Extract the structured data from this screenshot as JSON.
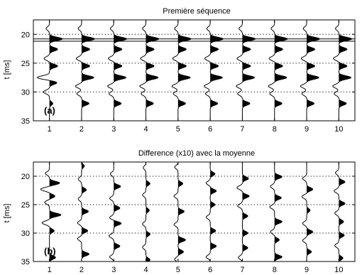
{
  "chart_data": [
    {
      "type": "line",
      "title": "Première séquence",
      "ylabel": "t [ms]",
      "panel_label": "(a)",
      "x_ticks": [
        "1",
        "2",
        "3",
        "4",
        "5",
        "6",
        "7",
        "8",
        "9",
        "10"
      ],
      "y_ticks": [
        "20",
        "25",
        "30",
        "35"
      ],
      "ylim": [
        17.5,
        35
      ],
      "y_reversed": true,
      "x_range": [
        0.5,
        10.5
      ],
      "grid_y": [
        20,
        25,
        30
      ],
      "solid_lines_y": [
        20.8,
        21.2
      ],
      "traces": [
        {
          "trace": 1,
          "events": [
            {
              "t": 19.0,
              "a": -0.25
            },
            {
              "t": 20.8,
              "a": 0.95
            },
            {
              "t": 22.6,
              "a": 0.6
            },
            {
              "t": 24.2,
              "a": -0.4
            },
            {
              "t": 25.5,
              "a": 0.6
            },
            {
              "t": 27.5,
              "a": -0.9
            },
            {
              "t": 28.4,
              "a": 0.55
            },
            {
              "t": 30.0,
              "a": -0.45
            },
            {
              "t": 32.0,
              "a": 0.25
            }
          ]
        },
        {
          "trace": 2,
          "events": [
            {
              "t": 19.0,
              "a": -0.25
            },
            {
              "t": 20.8,
              "a": 0.95
            },
            {
              "t": 22.6,
              "a": 0.6
            },
            {
              "t": 24.2,
              "a": -0.4
            },
            {
              "t": 25.5,
              "a": 0.6
            },
            {
              "t": 27.5,
              "a": 0.9
            },
            {
              "t": 29.0,
              "a": -0.45
            },
            {
              "t": 30.3,
              "a": -0.35
            },
            {
              "t": 32.0,
              "a": 0.55
            }
          ]
        },
        {
          "trace": 3,
          "events": [
            {
              "t": 19.0,
              "a": -0.25
            },
            {
              "t": 20.8,
              "a": 0.95
            },
            {
              "t": 22.6,
              "a": 0.6
            },
            {
              "t": 24.2,
              "a": -0.4
            },
            {
              "t": 25.5,
              "a": 0.6
            },
            {
              "t": 27.5,
              "a": 0.9
            },
            {
              "t": 29.0,
              "a": -0.45
            },
            {
              "t": 30.3,
              "a": -0.35
            },
            {
              "t": 32.0,
              "a": 0.55
            }
          ]
        },
        {
          "trace": 4,
          "events": [
            {
              "t": 19.0,
              "a": -0.25
            },
            {
              "t": 20.8,
              "a": 0.95
            },
            {
              "t": 22.6,
              "a": 0.6
            },
            {
              "t": 24.2,
              "a": -0.4
            },
            {
              "t": 25.5,
              "a": 0.6
            },
            {
              "t": 27.5,
              "a": 0.9
            },
            {
              "t": 29.0,
              "a": -0.45
            },
            {
              "t": 30.3,
              "a": -0.35
            },
            {
              "t": 32.0,
              "a": 0.55
            }
          ]
        },
        {
          "trace": 5,
          "events": [
            {
              "t": 19.0,
              "a": -0.25
            },
            {
              "t": 20.8,
              "a": 0.95
            },
            {
              "t": 22.6,
              "a": 0.6
            },
            {
              "t": 24.2,
              "a": -0.4
            },
            {
              "t": 25.5,
              "a": 0.6
            },
            {
              "t": 27.5,
              "a": 0.9
            },
            {
              "t": 29.0,
              "a": -0.45
            },
            {
              "t": 30.3,
              "a": -0.35
            },
            {
              "t": 32.0,
              "a": 0.55
            }
          ]
        },
        {
          "trace": 6,
          "events": [
            {
              "t": 19.0,
              "a": -0.25
            },
            {
              "t": 20.8,
              "a": 0.95
            },
            {
              "t": 22.6,
              "a": 0.6
            },
            {
              "t": 24.2,
              "a": -0.4
            },
            {
              "t": 25.5,
              "a": 0.6
            },
            {
              "t": 27.5,
              "a": 0.9
            },
            {
              "t": 29.0,
              "a": -0.45
            },
            {
              "t": 30.3,
              "a": -0.35
            },
            {
              "t": 32.0,
              "a": 0.55
            }
          ]
        },
        {
          "trace": 7,
          "events": [
            {
              "t": 19.0,
              "a": -0.25
            },
            {
              "t": 20.8,
              "a": 0.95
            },
            {
              "t": 22.6,
              "a": 0.6
            },
            {
              "t": 24.2,
              "a": -0.4
            },
            {
              "t": 25.5,
              "a": 0.6
            },
            {
              "t": 27.5,
              "a": 0.9
            },
            {
              "t": 29.0,
              "a": -0.45
            },
            {
              "t": 30.3,
              "a": -0.35
            },
            {
              "t": 32.0,
              "a": 0.55
            }
          ]
        },
        {
          "trace": 8,
          "events": [
            {
              "t": 19.0,
              "a": -0.25
            },
            {
              "t": 20.8,
              "a": 0.95
            },
            {
              "t": 22.6,
              "a": 0.6
            },
            {
              "t": 24.2,
              "a": -0.4
            },
            {
              "t": 25.5,
              "a": 0.6
            },
            {
              "t": 27.5,
              "a": 0.9
            },
            {
              "t": 29.0,
              "a": -0.45
            },
            {
              "t": 30.3,
              "a": -0.35
            },
            {
              "t": 32.0,
              "a": 0.55
            }
          ]
        },
        {
          "trace": 9,
          "events": [
            {
              "t": 19.0,
              "a": -0.25
            },
            {
              "t": 20.8,
              "a": 0.95
            },
            {
              "t": 22.6,
              "a": 0.6
            },
            {
              "t": 24.2,
              "a": -0.4
            },
            {
              "t": 25.5,
              "a": 0.6
            },
            {
              "t": 27.5,
              "a": 0.9
            },
            {
              "t": 29.0,
              "a": -0.45
            },
            {
              "t": 30.3,
              "a": -0.35
            },
            {
              "t": 32.0,
              "a": 0.55
            }
          ]
        },
        {
          "trace": 10,
          "events": [
            {
              "t": 19.0,
              "a": -0.25
            },
            {
              "t": 20.8,
              "a": 0.95
            },
            {
              "t": 22.6,
              "a": 0.6
            },
            {
              "t": 24.2,
              "a": -0.4
            },
            {
              "t": 25.5,
              "a": 0.6
            },
            {
              "t": 27.5,
              "a": 0.9
            },
            {
              "t": 29.0,
              "a": -0.45
            },
            {
              "t": 30.3,
              "a": -0.35
            },
            {
              "t": 32.0,
              "a": 0.55
            }
          ]
        }
      ]
    },
    {
      "type": "line",
      "title": "Difference (x10) avec la moyenne",
      "ylabel": "t [ms]",
      "panel_label": "(b)",
      "x_ticks": [
        "1",
        "2",
        "3",
        "4",
        "5",
        "6",
        "7",
        "8",
        "9",
        "10"
      ],
      "y_ticks": [
        "20",
        "25",
        "30",
        "35"
      ],
      "ylim": [
        17.5,
        35
      ],
      "y_reversed": true,
      "x_range": [
        0.5,
        10.5
      ],
      "grid_y": [
        20,
        25,
        30
      ],
      "solid_lines_y": [],
      "traces": [
        {
          "trace": 1,
          "events": [
            {
              "t": 19.5,
              "a": -0.3
            },
            {
              "t": 21.2,
              "a": 0.75
            },
            {
              "t": 22.3,
              "a": -0.65
            },
            {
              "t": 23.5,
              "a": 0.4
            },
            {
              "t": 24.6,
              "a": -0.35
            },
            {
              "t": 26.8,
              "a": 0.85
            },
            {
              "t": 28.2,
              "a": -0.55
            },
            {
              "t": 29.6,
              "a": 0.35
            },
            {
              "t": 34.3,
              "a": 0.45
            }
          ]
        },
        {
          "trace": 2,
          "events": [
            {
              "t": 18.2,
              "a": 0.2
            },
            {
              "t": 20.5,
              "a": -0.25
            },
            {
              "t": 22.4,
              "a": 0.35
            },
            {
              "t": 24.0,
              "a": -0.25
            },
            {
              "t": 26.2,
              "a": 0.5
            },
            {
              "t": 28.2,
              "a": -0.3
            },
            {
              "t": 29.6,
              "a": 0.45
            },
            {
              "t": 31.0,
              "a": -0.3
            },
            {
              "t": 33.7,
              "a": 0.55
            }
          ]
        },
        {
          "trace": 3,
          "events": [
            {
              "t": 19.6,
              "a": -0.25
            },
            {
              "t": 21.8,
              "a": 0.5
            },
            {
              "t": 23.9,
              "a": -0.3
            },
            {
              "t": 25.6,
              "a": 0.45
            },
            {
              "t": 27.3,
              "a": -0.3
            },
            {
              "t": 28.3,
              "a": 0.55
            },
            {
              "t": 30.5,
              "a": -0.35
            },
            {
              "t": 32.3,
              "a": 0.45
            },
            {
              "t": 34.2,
              "a": -0.3
            }
          ]
        },
        {
          "trace": 4,
          "events": [
            {
              "t": 18.5,
              "a": -0.2
            },
            {
              "t": 21.3,
              "a": 0.3
            },
            {
              "t": 23.3,
              "a": -0.25
            },
            {
              "t": 26.0,
              "a": 0.25
            },
            {
              "t": 28.4,
              "a": -0.25
            },
            {
              "t": 30.2,
              "a": 0.3
            },
            {
              "t": 32.5,
              "a": -0.25
            },
            {
              "t": 34.7,
              "a": 0.3
            }
          ]
        },
        {
          "trace": 5,
          "events": [
            {
              "t": 18.4,
              "a": -0.25
            },
            {
              "t": 21.3,
              "a": 0.35
            },
            {
              "t": 23.5,
              "a": -0.3
            },
            {
              "t": 26.2,
              "a": 0.45
            },
            {
              "t": 28.5,
              "a": -0.3
            },
            {
              "t": 31.2,
              "a": 0.55
            },
            {
              "t": 33.3,
              "a": 0.4
            },
            {
              "t": 34.6,
              "a": -0.25
            }
          ]
        },
        {
          "trace": 6,
          "events": [
            {
              "t": 19.6,
              "a": 0.35
            },
            {
              "t": 21.2,
              "a": -0.3
            },
            {
              "t": 22.6,
              "a": 0.45
            },
            {
              "t": 25.0,
              "a": 0.35
            },
            {
              "t": 27.2,
              "a": -0.3
            },
            {
              "t": 29.6,
              "a": 0.4
            },
            {
              "t": 32.3,
              "a": 0.45
            },
            {
              "t": 34.2,
              "a": -0.3
            }
          ]
        },
        {
          "trace": 7,
          "events": [
            {
              "t": 20.4,
              "a": 0.45
            },
            {
              "t": 22.0,
              "a": -0.4
            },
            {
              "t": 23.5,
              "a": 0.5
            },
            {
              "t": 25.2,
              "a": -0.35
            },
            {
              "t": 27.0,
              "a": 0.4
            },
            {
              "t": 30.0,
              "a": 0.4
            },
            {
              "t": 32.6,
              "a": 0.4
            },
            {
              "t": 34.3,
              "a": -0.3
            }
          ]
        },
        {
          "trace": 8,
          "events": [
            {
              "t": 20.1,
              "a": 0.55
            },
            {
              "t": 21.8,
              "a": -0.3
            },
            {
              "t": 23.8,
              "a": 0.5
            },
            {
              "t": 25.4,
              "a": -0.35
            },
            {
              "t": 28.0,
              "a": 0.55
            },
            {
              "t": 29.8,
              "a": -0.3
            },
            {
              "t": 31.2,
              "a": 0.35
            },
            {
              "t": 34.2,
              "a": 0.55
            }
          ]
        },
        {
          "trace": 9,
          "events": [
            {
              "t": 20.4,
              "a": -0.3
            },
            {
              "t": 22.3,
              "a": 0.45
            },
            {
              "t": 23.6,
              "a": -0.35
            },
            {
              "t": 26.0,
              "a": 0.25
            },
            {
              "t": 28.3,
              "a": -0.3
            },
            {
              "t": 29.8,
              "a": 0.45
            },
            {
              "t": 31.3,
              "a": -0.3
            },
            {
              "t": 33.3,
              "a": 0.35
            }
          ]
        },
        {
          "trace": 10,
          "events": [
            {
              "t": 19.4,
              "a": -0.25
            },
            {
              "t": 21.0,
              "a": 0.45
            },
            {
              "t": 22.6,
              "a": -0.35
            },
            {
              "t": 24.8,
              "a": 0.45
            },
            {
              "t": 26.5,
              "a": -0.3
            },
            {
              "t": 28.0,
              "a": 0.35
            },
            {
              "t": 30.4,
              "a": 0.4
            },
            {
              "t": 32.2,
              "a": -0.3
            },
            {
              "t": 34.4,
              "a": 0.3
            }
          ]
        }
      ]
    }
  ]
}
